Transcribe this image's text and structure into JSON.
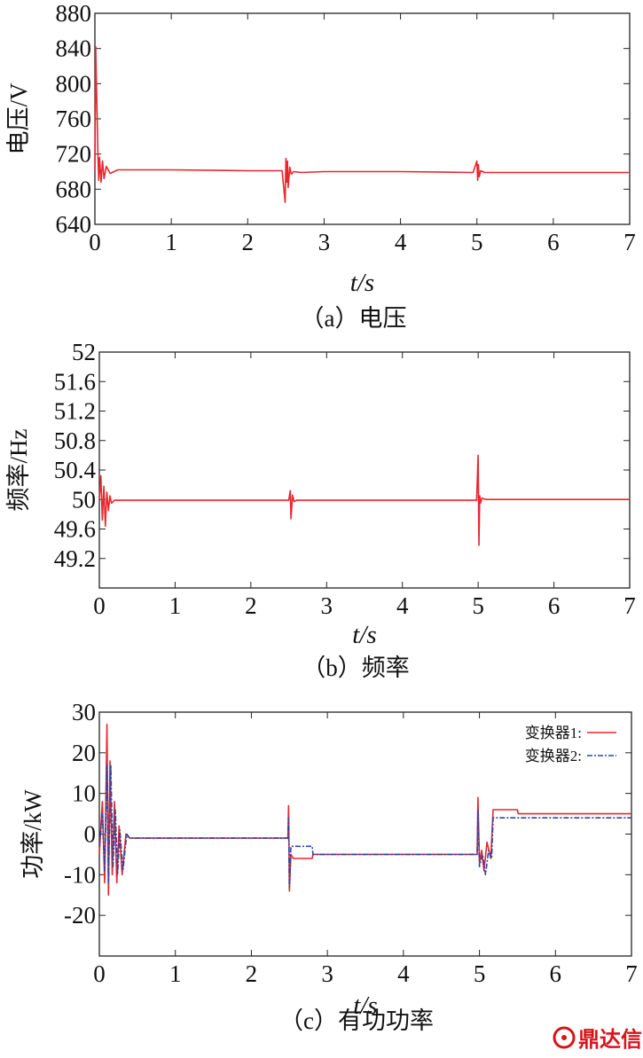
{
  "watermark": "鼎达信",
  "colors": {
    "series1": "#e8262d",
    "series2": "#2a47a8",
    "axis": "#222222",
    "watermark": "#d8141b"
  },
  "chart_data": [
    {
      "type": "line",
      "caption": "（a）电压",
      "ylabel": "电压/V",
      "xlabel": "t/s",
      "xlim": [
        0,
        7
      ],
      "ylim": [
        640,
        880
      ],
      "xticks": [
        "0",
        "1",
        "2",
        "3",
        "4",
        "5",
        "6",
        "7"
      ],
      "yticks": [
        "640",
        "680",
        "720",
        "760",
        "800",
        "840",
        "880"
      ],
      "series": [
        {
          "color": "#e8262d",
          "x": [
            0.0,
            0.01,
            0.02,
            0.03,
            0.04,
            0.05,
            0.06,
            0.08,
            0.1,
            0.12,
            0.15,
            0.2,
            0.3,
            1.0,
            2.0,
            2.45,
            2.49,
            2.5,
            2.51,
            2.52,
            2.53,
            2.55,
            2.57,
            2.6,
            2.7,
            3.0,
            4.0,
            4.95,
            5.0,
            5.01,
            5.02,
            5.03,
            5.05,
            5.1,
            6.0,
            7.0
          ],
          "y": [
            700,
            842,
            800,
            760,
            720,
            690,
            716,
            688,
            712,
            692,
            706,
            698,
            702,
            702,
            701,
            701,
            665,
            715,
            688,
            712,
            682,
            705,
            697,
            700,
            699,
            700,
            700,
            699,
            712,
            690,
            708,
            694,
            701,
            699,
            699,
            699
          ]
        }
      ]
    },
    {
      "type": "line",
      "caption": "（b）频率",
      "ylabel": "频率/Hz",
      "xlabel": "t/s",
      "xlim": [
        0,
        7
      ],
      "ylim": [
        48.8,
        52
      ],
      "xticks": [
        "0",
        "1",
        "2",
        "3",
        "4",
        "5",
        "6",
        "7"
      ],
      "yticks": [
        "49.2",
        "49.6",
        "50",
        "50.4",
        "50.8",
        "51.2",
        "51.6",
        "52"
      ],
      "series": [
        {
          "color": "#e8262d",
          "x": [
            0.0,
            0.02,
            0.04,
            0.06,
            0.08,
            0.1,
            0.12,
            0.14,
            0.16,
            0.2,
            1.0,
            2.0,
            2.5,
            2.52,
            2.53,
            2.55,
            2.57,
            2.6,
            3.0,
            4.0,
            4.98,
            5.0,
            5.01,
            5.02,
            5.03,
            5.05,
            5.1,
            6.0,
            7.0
          ],
          "y": [
            50.0,
            50.32,
            49.72,
            50.18,
            49.64,
            50.1,
            49.85,
            50.05,
            49.95,
            49.99,
            49.99,
            49.99,
            49.99,
            50.12,
            49.74,
            50.06,
            49.97,
            49.99,
            49.99,
            49.99,
            49.99,
            50.6,
            49.38,
            50.05,
            49.95,
            50.02,
            50.0,
            50.0,
            50.0
          ]
        }
      ]
    },
    {
      "type": "line",
      "caption": "（c）有功功率",
      "ylabel": "功率/kW",
      "xlabel": "t/s",
      "xlim": [
        0,
        7
      ],
      "ylim": [
        -30,
        30
      ],
      "xticks": [
        "0",
        "1",
        "2",
        "3",
        "4",
        "5",
        "6",
        "7"
      ],
      "yticks": [
        "-20",
        "-10",
        "0",
        "10",
        "20",
        "30"
      ],
      "legend": {
        "position": "top-right",
        "entries": [
          "变换器1:",
          "变换器2:"
        ]
      },
      "series": [
        {
          "name": "变换器1:",
          "color": "#e8262d",
          "x": [
            0.0,
            0.04,
            0.07,
            0.1,
            0.12,
            0.14,
            0.17,
            0.2,
            0.23,
            0.26,
            0.3,
            0.35,
            0.4,
            1.0,
            2.0,
            2.45,
            2.48,
            2.49,
            2.5,
            2.52,
            2.55,
            2.6,
            2.8,
            2.81,
            3.0,
            4.0,
            4.9,
            4.97,
            4.98,
            5.0,
            5.03,
            5.06,
            5.1,
            5.15,
            5.18,
            5.2,
            5.3,
            5.5,
            5.51,
            6.0,
            7.0
          ],
          "y": [
            -5,
            8,
            -12,
            27,
            -15,
            18,
            -10,
            8,
            -12,
            2,
            -10,
            0,
            -1,
            -1,
            -1,
            -1,
            -1,
            7,
            -14,
            -5,
            -6,
            -6,
            -6,
            -5,
            -5,
            -5,
            -5,
            -5,
            9,
            -7,
            -4,
            -9,
            -2,
            -6,
            6,
            6,
            6,
            6,
            5,
            5,
            5
          ]
        },
        {
          "name": "变换器2:",
          "color": "#2a47a8",
          "x": [
            0.0,
            0.04,
            0.07,
            0.1,
            0.12,
            0.15,
            0.18,
            0.21,
            0.24,
            0.27,
            0.31,
            0.36,
            0.4,
            1.0,
            2.0,
            2.45,
            2.48,
            2.49,
            2.5,
            2.52,
            2.55,
            2.8,
            2.81,
            3.0,
            4.0,
            4.9,
            4.97,
            4.98,
            5.0,
            5.04,
            5.08,
            5.12,
            5.16,
            5.18,
            5.2,
            5.5,
            5.51,
            6.0,
            7.0
          ],
          "y": [
            -3,
            5,
            -9,
            17,
            -12,
            17,
            -8,
            6,
            -10,
            1,
            -9,
            0,
            -1,
            -1,
            -1,
            -1,
            -1,
            4,
            -13,
            -3,
            -3,
            -3,
            -5,
            -5,
            -5,
            -5,
            -5,
            6,
            -8,
            -5,
            -10,
            -4,
            -6,
            4,
            4,
            4,
            4,
            4,
            4
          ]
        }
      ]
    }
  ]
}
